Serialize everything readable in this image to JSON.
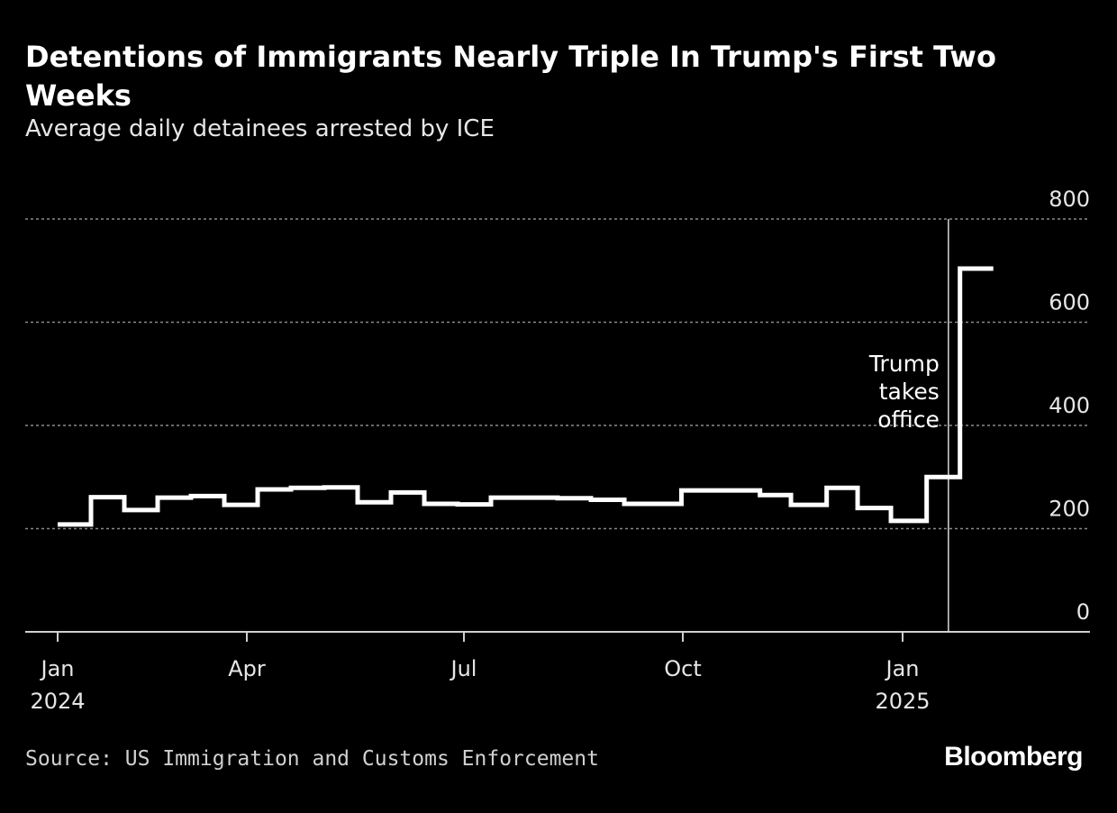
{
  "chart_data": {
    "type": "line",
    "step": true,
    "title": "Detentions of Immigrants Nearly Triple In Trump's First Two Weeks",
    "subtitle": "Average daily detainees arrested by ICE",
    "xlabel": "",
    "ylabel": "",
    "ylim": [
      0,
      800
    ],
    "yticks": [
      "0",
      "200",
      "400",
      "600",
      "800"
    ],
    "xticks": [
      {
        "month": "Jan",
        "year": "2024"
      },
      {
        "month": "Apr",
        "year": ""
      },
      {
        "month": "Jul",
        "year": ""
      },
      {
        "month": "Oct",
        "year": ""
      },
      {
        "month": "Jan",
        "year": "2025"
      }
    ],
    "grid": true,
    "color": "#ffffff",
    "series": [
      {
        "points": [
          {
            "date": "2024-01-13",
            "value": 208
          },
          {
            "date": "2024-01-27",
            "value": 261
          },
          {
            "date": "2024-02-10",
            "value": 236
          },
          {
            "date": "2024-02-24",
            "value": 260
          },
          {
            "date": "2024-03-09",
            "value": 263
          },
          {
            "date": "2024-03-23",
            "value": 246
          },
          {
            "date": "2024-04-06",
            "value": 276
          },
          {
            "date": "2024-04-20",
            "value": 279
          },
          {
            "date": "2024-05-04",
            "value": 280
          },
          {
            "date": "2024-05-18",
            "value": 251
          },
          {
            "date": "2024-06-01",
            "value": 270
          },
          {
            "date": "2024-06-15",
            "value": 248
          },
          {
            "date": "2024-06-29",
            "value": 247
          },
          {
            "date": "2024-07-13",
            "value": 260
          },
          {
            "date": "2024-07-27",
            "value": 260
          },
          {
            "date": "2024-08-10",
            "value": 259
          },
          {
            "date": "2024-08-24",
            "value": 256
          },
          {
            "date": "2024-09-07",
            "value": 248
          },
          {
            "date": "2024-10-01",
            "value": 274
          },
          {
            "date": "2024-10-19",
            "value": 274
          },
          {
            "date": "2024-11-03",
            "value": 265
          },
          {
            "date": "2024-11-16",
            "value": 246
          },
          {
            "date": "2024-12-01",
            "value": 279
          },
          {
            "date": "2024-12-14",
            "value": 240
          },
          {
            "date": "2024-12-28",
            "value": 215
          },
          {
            "date": "2025-01-12",
            "value": 300
          },
          {
            "date": "2025-01-26",
            "value": 704
          },
          {
            "date": "2025-02-09",
            "value": 704
          }
        ]
      }
    ],
    "annotation": {
      "date": "2025-01-20",
      "lines": [
        "Trump",
        "takes",
        "office"
      ]
    }
  },
  "footer": {
    "source": "Source: US Immigration and Customs Enforcement",
    "logo": "Bloomberg"
  }
}
